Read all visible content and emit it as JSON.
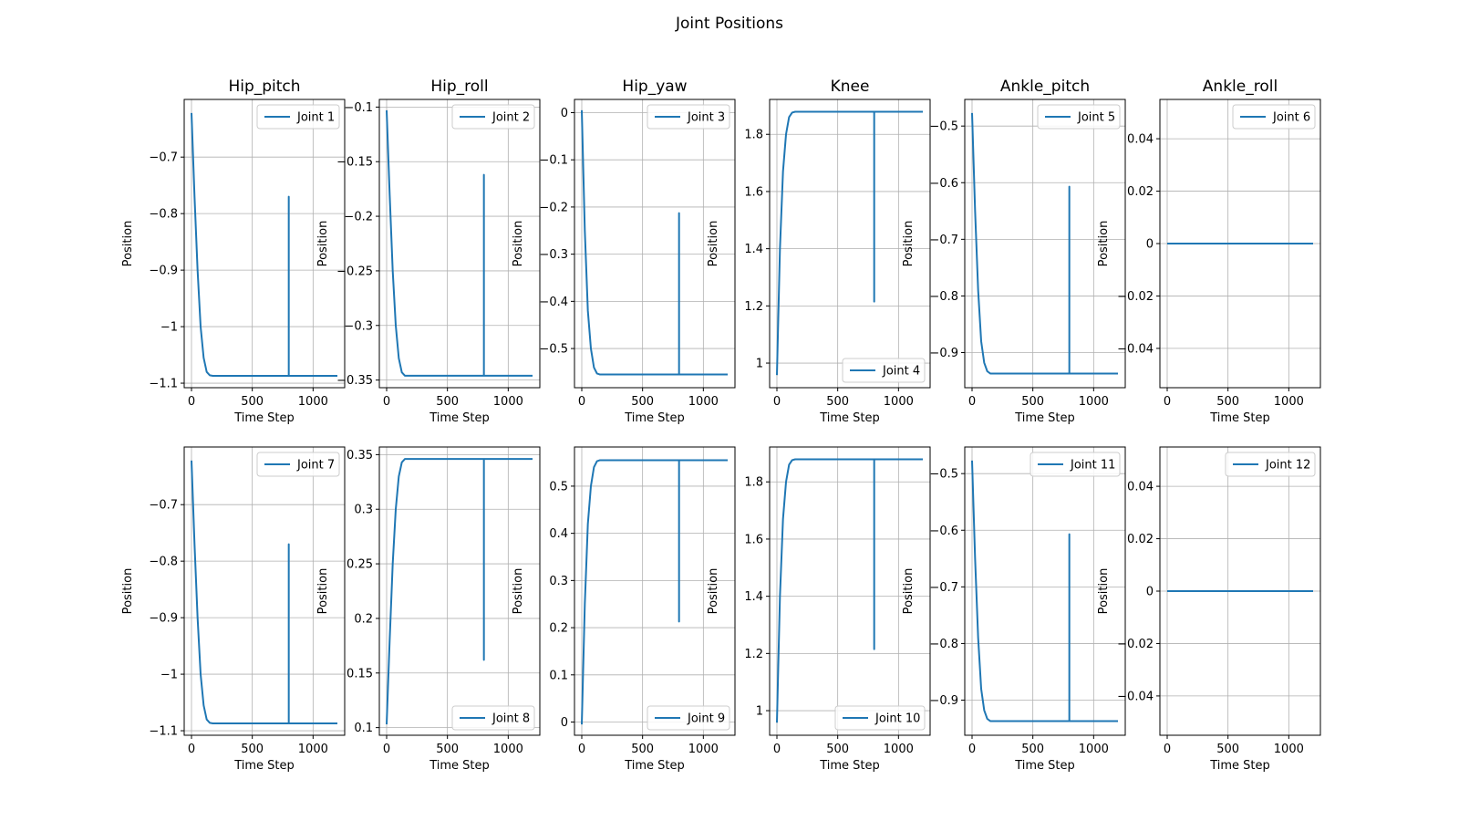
{
  "figure": {
    "title": "Joint Positions"
  },
  "colors": {
    "line": "#1f77b4",
    "grid": "#b0b0b0",
    "axis": "#000000",
    "legend_border": "#cccccc"
  },
  "chart_data": [
    {
      "type": "line",
      "title": "Hip_pitch",
      "xlabel": "Time Step",
      "ylabel": "Position",
      "legend": "Joint 1",
      "legend_loc": "upper right",
      "grid": true,
      "xlim": [
        -60,
        1260
      ],
      "ylim": [
        -1.108,
        -0.598
      ],
      "xticks": [
        0,
        500,
        1000
      ],
      "yticks": [
        -1.1,
        -1.0,
        -0.9,
        -0.8,
        -0.7
      ],
      "x": [
        0,
        25,
        50,
        75,
        100,
        125,
        150,
        175,
        800,
        800,
        800,
        1200
      ],
      "y": [
        -0.622,
        -0.77,
        -0.9,
        -1.0,
        -1.055,
        -1.08,
        -1.086,
        -1.087,
        -1.087,
        -0.77,
        -1.087,
        -1.087
      ]
    },
    {
      "type": "line",
      "title": "Hip_roll",
      "xlabel": "Time Step",
      "ylabel": "Position",
      "legend": "Joint 2",
      "legend_loc": "upper right",
      "grid": true,
      "xlim": [
        -60,
        1260
      ],
      "ylim": [
        -0.357,
        -0.093
      ],
      "xticks": [
        0,
        500,
        1000
      ],
      "yticks": [
        -0.35,
        -0.3,
        -0.25,
        -0.2,
        -0.15,
        -0.1
      ],
      "x": [
        0,
        25,
        50,
        75,
        100,
        125,
        150,
        175,
        800,
        800,
        800,
        1200
      ],
      "y": [
        -0.103,
        -0.18,
        -0.25,
        -0.3,
        -0.33,
        -0.343,
        -0.346,
        -0.346,
        -0.346,
        -0.162,
        -0.346,
        -0.346
      ]
    },
    {
      "type": "line",
      "title": "Hip_yaw",
      "xlabel": "Time Step",
      "ylabel": "Position",
      "legend": "Joint 3",
      "legend_loc": "upper right",
      "grid": true,
      "xlim": [
        -60,
        1260
      ],
      "ylim": [
        -0.583,
        0.028
      ],
      "xticks": [
        0,
        500,
        1000
      ],
      "yticks": [
        -0.5,
        -0.4,
        -0.3,
        -0.2,
        -0.1,
        0.0
      ],
      "x": [
        0,
        25,
        50,
        75,
        100,
        125,
        150,
        175,
        800,
        800,
        800,
        1200
      ],
      "y": [
        0.005,
        -0.25,
        -0.42,
        -0.5,
        -0.54,
        -0.553,
        -0.555,
        -0.555,
        -0.555,
        -0.213,
        -0.555,
        -0.555
      ]
    },
    {
      "type": "line",
      "title": "Knee",
      "xlabel": "Time Step",
      "ylabel": "Position",
      "legend": "Joint 4",
      "legend_loc": "lower right",
      "grid": true,
      "xlim": [
        -60,
        1260
      ],
      "ylim": [
        0.914,
        1.922
      ],
      "xticks": [
        0,
        500,
        1000
      ],
      "yticks": [
        1.0,
        1.2,
        1.4,
        1.6,
        1.8
      ],
      "x": [
        0,
        25,
        50,
        75,
        100,
        125,
        150,
        175,
        800,
        800,
        800,
        1200
      ],
      "y": [
        0.958,
        1.4,
        1.67,
        1.8,
        1.86,
        1.876,
        1.879,
        1.879,
        1.879,
        1.215,
        1.879,
        1.879
      ]
    },
    {
      "type": "line",
      "title": "Ankle_pitch",
      "xlabel": "Time Step",
      "ylabel": "Position",
      "legend": "Joint 5",
      "legend_loc": "upper right",
      "grid": true,
      "xlim": [
        -60,
        1260
      ],
      "ylim": [
        -0.962,
        -0.453
      ],
      "xticks": [
        0,
        500,
        1000
      ],
      "yticks": [
        -0.9,
        -0.8,
        -0.7,
        -0.6,
        -0.5
      ],
      "x": [
        0,
        25,
        50,
        75,
        100,
        125,
        150,
        175,
        800,
        800,
        800,
        1200
      ],
      "y": [
        -0.477,
        -0.65,
        -0.79,
        -0.88,
        -0.918,
        -0.933,
        -0.937,
        -0.937,
        -0.937,
        -0.607,
        -0.937,
        -0.937
      ]
    },
    {
      "type": "line",
      "title": "Ankle_roll",
      "xlabel": "Time Step",
      "ylabel": "Position",
      "legend": "Joint 6",
      "legend_loc": "upper right",
      "grid": true,
      "xlim": [
        -60,
        1260
      ],
      "ylim": [
        -0.055,
        0.055
      ],
      "xticks": [
        0,
        500,
        1000
      ],
      "yticks": [
        -0.04,
        -0.02,
        0.0,
        0.02,
        0.04
      ],
      "x": [
        0,
        1200
      ],
      "y": [
        0.0,
        0.0
      ]
    },
    {
      "type": "line",
      "title": "",
      "xlabel": "Time Step",
      "ylabel": "Position",
      "legend": "Joint 7",
      "legend_loc": "upper right",
      "grid": true,
      "xlim": [
        -60,
        1260
      ],
      "ylim": [
        -1.108,
        -0.598
      ],
      "xticks": [
        0,
        500,
        1000
      ],
      "yticks": [
        -1.1,
        -1.0,
        -0.9,
        -0.8,
        -0.7
      ],
      "x": [
        0,
        25,
        50,
        75,
        100,
        125,
        150,
        175,
        800,
        800,
        800,
        1200
      ],
      "y": [
        -0.622,
        -0.77,
        -0.9,
        -1.0,
        -1.055,
        -1.08,
        -1.086,
        -1.087,
        -1.087,
        -0.77,
        -1.087,
        -1.087
      ]
    },
    {
      "type": "line",
      "title": "",
      "xlabel": "Time Step",
      "ylabel": "Position",
      "legend": "Joint 8",
      "legend_loc": "lower right",
      "grid": true,
      "xlim": [
        -60,
        1260
      ],
      "ylim": [
        0.093,
        0.357
      ],
      "xticks": [
        0,
        500,
        1000
      ],
      "yticks": [
        0.1,
        0.15,
        0.2,
        0.25,
        0.3,
        0.35
      ],
      "x": [
        0,
        25,
        50,
        75,
        100,
        125,
        150,
        175,
        800,
        800,
        800,
        1200
      ],
      "y": [
        0.103,
        0.18,
        0.25,
        0.3,
        0.33,
        0.343,
        0.346,
        0.346,
        0.346,
        0.162,
        0.346,
        0.346
      ]
    },
    {
      "type": "line",
      "title": "",
      "xlabel": "Time Step",
      "ylabel": "Position",
      "legend": "Joint 9",
      "legend_loc": "lower right",
      "grid": true,
      "xlim": [
        -60,
        1260
      ],
      "ylim": [
        -0.028,
        0.583
      ],
      "xticks": [
        0,
        500,
        1000
      ],
      "yticks": [
        0.0,
        0.1,
        0.2,
        0.3,
        0.4,
        0.5
      ],
      "x": [
        0,
        25,
        50,
        75,
        100,
        125,
        150,
        175,
        800,
        800,
        800,
        1200
      ],
      "y": [
        -0.005,
        0.25,
        0.42,
        0.5,
        0.54,
        0.553,
        0.555,
        0.555,
        0.555,
        0.213,
        0.555,
        0.555
      ]
    },
    {
      "type": "line",
      "title": "",
      "xlabel": "Time Step",
      "ylabel": "Position",
      "legend": "Joint 10",
      "legend_loc": "lower right",
      "grid": true,
      "xlim": [
        -60,
        1260
      ],
      "ylim": [
        0.914,
        1.922
      ],
      "xticks": [
        0,
        500,
        1000
      ],
      "yticks": [
        1.0,
        1.2,
        1.4,
        1.6,
        1.8
      ],
      "x": [
        0,
        25,
        50,
        75,
        100,
        125,
        150,
        175,
        800,
        800,
        800,
        1200
      ],
      "y": [
        0.958,
        1.4,
        1.67,
        1.8,
        1.86,
        1.876,
        1.879,
        1.879,
        1.879,
        1.215,
        1.879,
        1.879
      ]
    },
    {
      "type": "line",
      "title": "",
      "xlabel": "Time Step",
      "ylabel": "Position",
      "legend": "Joint 11",
      "legend_loc": "upper right",
      "grid": true,
      "xlim": [
        -60,
        1260
      ],
      "ylim": [
        -0.962,
        -0.453
      ],
      "xticks": [
        0,
        500,
        1000
      ],
      "yticks": [
        -0.9,
        -0.8,
        -0.7,
        -0.6,
        -0.5
      ],
      "x": [
        0,
        25,
        50,
        75,
        100,
        125,
        150,
        175,
        800,
        800,
        800,
        1200
      ],
      "y": [
        -0.477,
        -0.65,
        -0.79,
        -0.88,
        -0.918,
        -0.933,
        -0.937,
        -0.937,
        -0.937,
        -0.607,
        -0.937,
        -0.937
      ]
    },
    {
      "type": "line",
      "title": "",
      "xlabel": "Time Step",
      "ylabel": "Position",
      "legend": "Joint 12",
      "legend_loc": "upper right",
      "grid": true,
      "xlim": [
        -60,
        1260
      ],
      "ylim": [
        -0.055,
        0.055
      ],
      "xticks": [
        0,
        500,
        1000
      ],
      "yticks": [
        -0.04,
        -0.02,
        0.0,
        0.02,
        0.04
      ],
      "x": [
        0,
        1200
      ],
      "y": [
        0.0,
        0.0
      ]
    }
  ]
}
